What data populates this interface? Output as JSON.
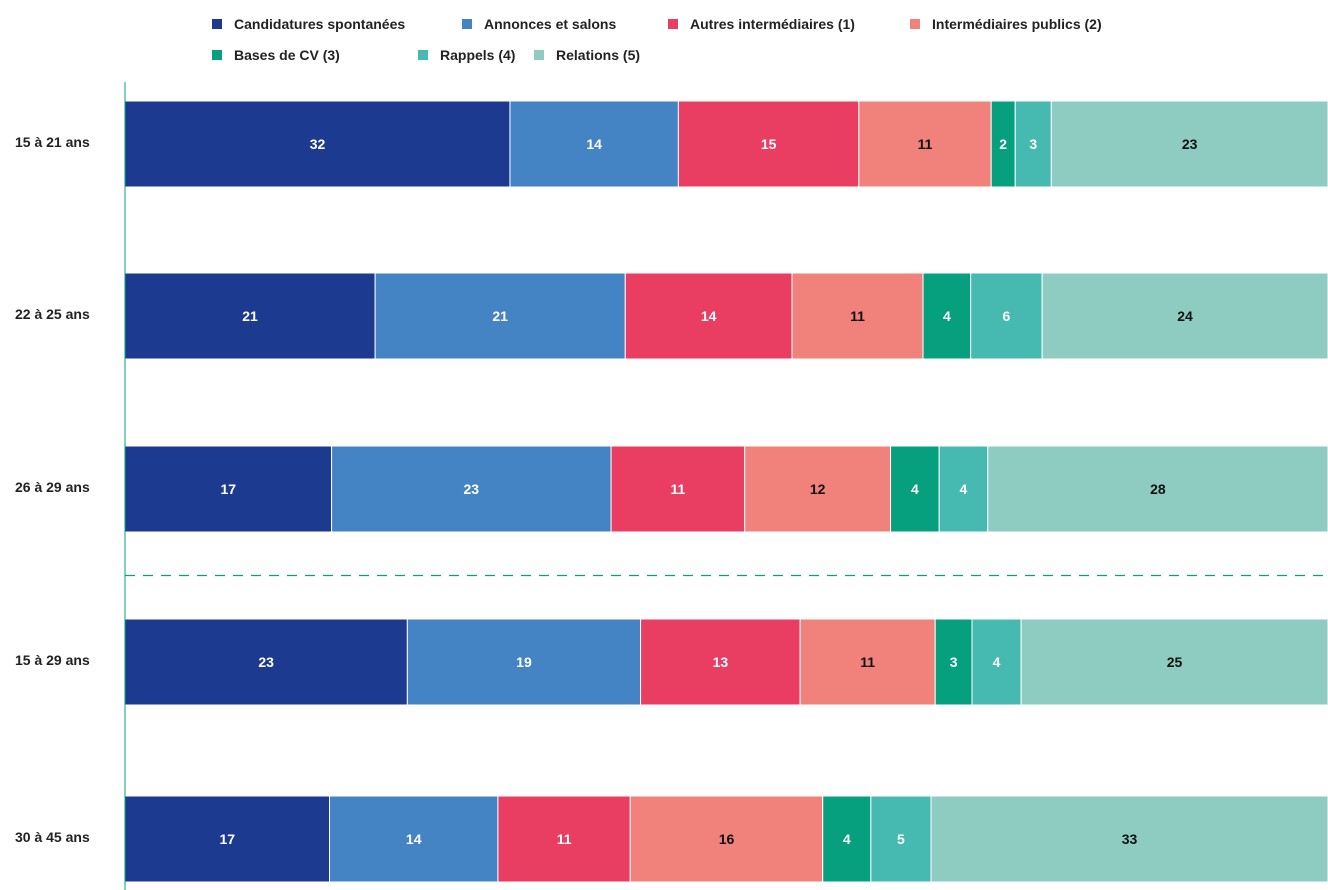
{
  "chart_data": {
    "type": "bar",
    "orientation": "horizontal",
    "stacked": true,
    "categories": [
      "15 à 21 ans",
      "22 à 25 ans",
      "26 à 29 ans",
      "15 à 29 ans",
      "30 à 45 ans"
    ],
    "separator_after_category": 2,
    "legend_position": "top",
    "grid": false,
    "xlim": [
      0,
      100
    ],
    "series": [
      {
        "name": "Candidatures spontanées",
        "color": "#1c3a8f",
        "label_color": "#ffffff",
        "values": [
          32,
          21,
          17,
          23,
          17
        ]
      },
      {
        "name": "Annonces et salons",
        "color": "#4584c4",
        "label_color": "#ffffff",
        "values": [
          14,
          21,
          23,
          19,
          14
        ]
      },
      {
        "name": "Autres intermédiaires (1)",
        "color": "#e93e62",
        "label_color": "#ffffff",
        "values": [
          15,
          14,
          11,
          13,
          11
        ]
      },
      {
        "name": "Intermédiaires publics (2)",
        "color": "#f0827b",
        "label_color": "#111111",
        "values": [
          11,
          11,
          12,
          11,
          16
        ]
      },
      {
        "name": "Bases de CV (3)",
        "color": "#06a07f",
        "label_color": "#ffffff",
        "values": [
          2,
          4,
          4,
          3,
          4
        ]
      },
      {
        "name": "Rappels (4)",
        "color": "#46b9b0",
        "label_color": "#ffffff",
        "values": [
          3,
          6,
          4,
          4,
          5
        ]
      },
      {
        "name": "Relations (5)",
        "color": "#8ecbc0",
        "label_color": "#111111",
        "values": [
          23,
          24,
          28,
          25,
          33
        ]
      }
    ],
    "axis_color": "#06a07f"
  }
}
